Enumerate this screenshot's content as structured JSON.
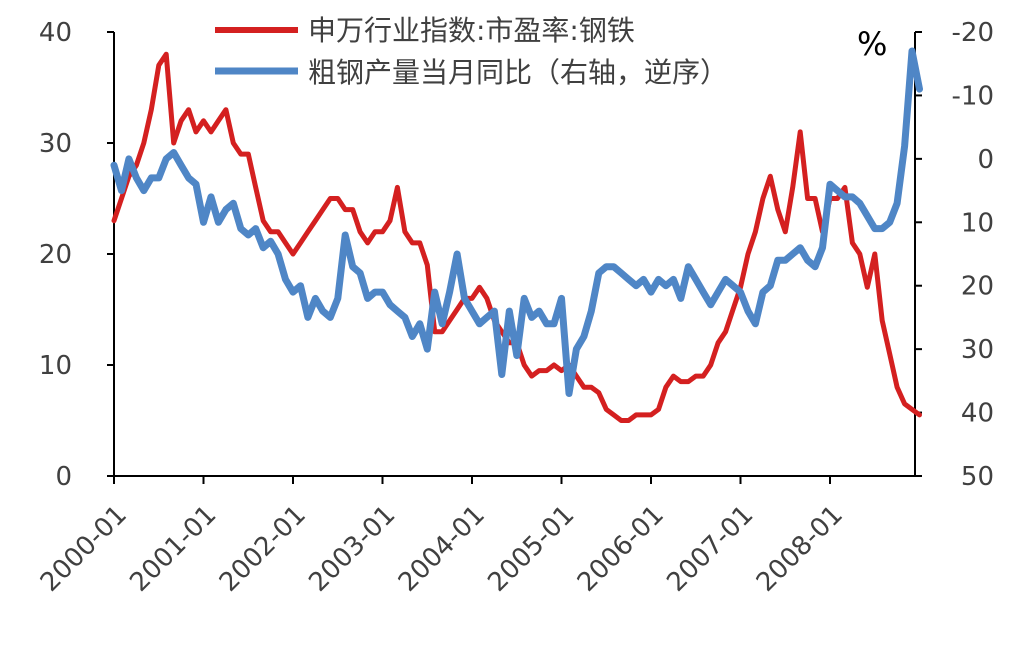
{
  "chart_data": {
    "type": "line",
    "unit_label": "%",
    "x_ticks": [
      "2000-01",
      "2001-01",
      "2002-01",
      "2003-01",
      "2004-01",
      "2005-01",
      "2006-01",
      "2007-01",
      "2008-01"
    ],
    "left_axis": {
      "ticks": [
        "0",
        "10",
        "20",
        "30",
        "40"
      ],
      "range": [
        0,
        40
      ]
    },
    "right_axis": {
      "ticks": [
        "-20",
        "-10",
        "0",
        "10",
        "20",
        "30",
        "40",
        "50"
      ],
      "range": [
        -20,
        50
      ],
      "reversed": true
    },
    "legend_position": "top-center",
    "series": [
      {
        "name": "申万行业指数:市盈率:钢铁",
        "axis": "left",
        "color": "#d42020",
        "points": [
          [
            "2000-01",
            23
          ],
          [
            "2000-02",
            25
          ],
          [
            "2000-03",
            27
          ],
          [
            "2000-04",
            28
          ],
          [
            "2000-05",
            30
          ],
          [
            "2000-06",
            33
          ],
          [
            "2000-07",
            37
          ],
          [
            "2000-08",
            38
          ],
          [
            "2000-09",
            30
          ],
          [
            "2000-10",
            32
          ],
          [
            "2000-11",
            33
          ],
          [
            "2000-12",
            31
          ],
          [
            "2001-01",
            32
          ],
          [
            "2001-02",
            31
          ],
          [
            "2001-03",
            32
          ],
          [
            "2001-04",
            33
          ],
          [
            "2001-05",
            30
          ],
          [
            "2001-06",
            29
          ],
          [
            "2001-07",
            29
          ],
          [
            "2001-08",
            26
          ],
          [
            "2001-09",
            23
          ],
          [
            "2001-10",
            22
          ],
          [
            "2001-11",
            22
          ],
          [
            "2001-12",
            21
          ],
          [
            "2002-01",
            20
          ],
          [
            "2002-02",
            21
          ],
          [
            "2002-03",
            22
          ],
          [
            "2002-04",
            23
          ],
          [
            "2002-05",
            24
          ],
          [
            "2002-06",
            25
          ],
          [
            "2002-07",
            25
          ],
          [
            "2002-08",
            24
          ],
          [
            "2002-09",
            24
          ],
          [
            "2002-10",
            22
          ],
          [
            "2002-11",
            21
          ],
          [
            "2002-12",
            22
          ],
          [
            "2003-01",
            22
          ],
          [
            "2003-02",
            23
          ],
          [
            "2003-03",
            26
          ],
          [
            "2003-04",
            22
          ],
          [
            "2003-05",
            21
          ],
          [
            "2003-06",
            21
          ],
          [
            "2003-07",
            19
          ],
          [
            "2003-08",
            13
          ],
          [
            "2003-09",
            13
          ],
          [
            "2003-10",
            14
          ],
          [
            "2003-11",
            15
          ],
          [
            "2003-12",
            16
          ],
          [
            "2004-01",
            16
          ],
          [
            "2004-02",
            17
          ],
          [
            "2004-03",
            16
          ],
          [
            "2004-04",
            14
          ],
          [
            "2004-05",
            13
          ],
          [
            "2004-06",
            12
          ],
          [
            "2004-07",
            12
          ],
          [
            "2004-08",
            10
          ],
          [
            "2004-09",
            9
          ],
          [
            "2004-10",
            9.5
          ],
          [
            "2004-11",
            9.5
          ],
          [
            "2004-12",
            10
          ],
          [
            "2005-01",
            9.5
          ],
          [
            "2005-02",
            10
          ],
          [
            "2005-03",
            9
          ],
          [
            "2005-04",
            8
          ],
          [
            "2005-05",
            8
          ],
          [
            "2005-06",
            7.5
          ],
          [
            "2005-07",
            6
          ],
          [
            "2005-08",
            5.5
          ],
          [
            "2005-09",
            5
          ],
          [
            "2005-10",
            5
          ],
          [
            "2005-11",
            5.5
          ],
          [
            "2005-12",
            5.5
          ],
          [
            "2006-01",
            5.5
          ],
          [
            "2006-02",
            6
          ],
          [
            "2006-03",
            8
          ],
          [
            "2006-04",
            9
          ],
          [
            "2006-05",
            8.5
          ],
          [
            "2006-06",
            8.5
          ],
          [
            "2006-07",
            9
          ],
          [
            "2006-08",
            9
          ],
          [
            "2006-09",
            10
          ],
          [
            "2006-10",
            12
          ],
          [
            "2006-11",
            13
          ],
          [
            "2006-12",
            15
          ],
          [
            "2007-01",
            17
          ],
          [
            "2007-02",
            20
          ],
          [
            "2007-03",
            22
          ],
          [
            "2007-04",
            25
          ],
          [
            "2007-05",
            27
          ],
          [
            "2007-06",
            24
          ],
          [
            "2007-07",
            22
          ],
          [
            "2007-08",
            26
          ],
          [
            "2007-09",
            31
          ],
          [
            "2007-10",
            25
          ],
          [
            "2007-11",
            25
          ],
          [
            "2007-12",
            22
          ],
          [
            "2008-01",
            25
          ],
          [
            "2008-02",
            25
          ],
          [
            "2008-03",
            26
          ],
          [
            "2008-04",
            21
          ],
          [
            "2008-05",
            20
          ],
          [
            "2008-06",
            17
          ],
          [
            "2008-07",
            20
          ],
          [
            "2008-08",
            14
          ],
          [
            "2008-09",
            11
          ],
          [
            "2008-10",
            8
          ],
          [
            "2008-11",
            6.5
          ],
          [
            "2008-12",
            6
          ],
          [
            "2009-01",
            5.5
          ]
        ]
      },
      {
        "name": "粗钢产量当月同比（右轴，逆序）",
        "axis": "right",
        "color": "#4f86c6",
        "points": [
          [
            "2000-01",
            1
          ],
          [
            "2000-02",
            5
          ],
          [
            "2000-03",
            0
          ],
          [
            "2000-04",
            3
          ],
          [
            "2000-05",
            5
          ],
          [
            "2000-06",
            3
          ],
          [
            "2000-07",
            3
          ],
          [
            "2000-08",
            0
          ],
          [
            "2000-09",
            -1
          ],
          [
            "2000-10",
            1
          ],
          [
            "2000-11",
            3
          ],
          [
            "2000-12",
            4
          ],
          [
            "2001-01",
            10
          ],
          [
            "2001-02",
            6
          ],
          [
            "2001-03",
            10
          ],
          [
            "2001-04",
            8
          ],
          [
            "2001-05",
            7
          ],
          [
            "2001-06",
            11
          ],
          [
            "2001-07",
            12
          ],
          [
            "2001-08",
            11
          ],
          [
            "2001-09",
            14
          ],
          [
            "2001-10",
            13
          ],
          [
            "2001-11",
            15
          ],
          [
            "2001-12",
            19
          ],
          [
            "2002-01",
            21
          ],
          [
            "2002-02",
            20
          ],
          [
            "2002-03",
            25
          ],
          [
            "2002-04",
            22
          ],
          [
            "2002-05",
            24
          ],
          [
            "2002-06",
            25
          ],
          [
            "2002-07",
            22
          ],
          [
            "2002-08",
            12
          ],
          [
            "2002-09",
            17
          ],
          [
            "2002-10",
            18
          ],
          [
            "2002-11",
            22
          ],
          [
            "2002-12",
            21
          ],
          [
            "2003-01",
            21
          ],
          [
            "2003-02",
            23
          ],
          [
            "2003-03",
            24
          ],
          [
            "2003-04",
            25
          ],
          [
            "2003-05",
            28
          ],
          [
            "2003-06",
            26
          ],
          [
            "2003-07",
            30
          ],
          [
            "2003-08",
            21
          ],
          [
            "2003-09",
            26
          ],
          [
            "2003-10",
            21
          ],
          [
            "2003-11",
            15
          ],
          [
            "2003-12",
            22
          ],
          [
            "2004-01",
            24
          ],
          [
            "2004-02",
            26
          ],
          [
            "2004-03",
            25
          ],
          [
            "2004-04",
            24
          ],
          [
            "2004-05",
            34
          ],
          [
            "2004-06",
            24
          ],
          [
            "2004-07",
            31
          ],
          [
            "2004-08",
            22
          ],
          [
            "2004-09",
            25
          ],
          [
            "2004-10",
            24
          ],
          [
            "2004-11",
            26
          ],
          [
            "2004-12",
            26
          ],
          [
            "2005-01",
            22
          ],
          [
            "2005-02",
            37
          ],
          [
            "2005-03",
            30
          ],
          [
            "2005-04",
            28
          ],
          [
            "2005-05",
            24
          ],
          [
            "2005-06",
            18
          ],
          [
            "2005-07",
            17
          ],
          [
            "2005-08",
            17
          ],
          [
            "2005-09",
            18
          ],
          [
            "2005-10",
            19
          ],
          [
            "2005-11",
            20
          ],
          [
            "2005-12",
            19
          ],
          [
            "2006-01",
            21
          ],
          [
            "2006-02",
            19
          ],
          [
            "2006-03",
            20
          ],
          [
            "2006-04",
            19
          ],
          [
            "2006-05",
            22
          ],
          [
            "2006-06",
            17
          ],
          [
            "2006-07",
            19
          ],
          [
            "2006-08",
            21
          ],
          [
            "2006-09",
            23
          ],
          [
            "2006-10",
            21
          ],
          [
            "2006-11",
            19
          ],
          [
            "2006-12",
            20
          ],
          [
            "2007-01",
            21
          ],
          [
            "2007-02",
            24
          ],
          [
            "2007-03",
            26
          ],
          [
            "2007-04",
            21
          ],
          [
            "2007-05",
            20
          ],
          [
            "2007-06",
            16
          ],
          [
            "2007-07",
            16
          ],
          [
            "2007-08",
            15
          ],
          [
            "2007-09",
            14
          ],
          [
            "2007-10",
            16
          ],
          [
            "2007-11",
            17
          ],
          [
            "2007-12",
            14
          ],
          [
            "2008-01",
            4
          ],
          [
            "2008-02",
            5
          ],
          [
            "2008-03",
            6
          ],
          [
            "2008-04",
            6
          ],
          [
            "2008-05",
            7
          ],
          [
            "2008-06",
            9
          ],
          [
            "2008-07",
            11
          ],
          [
            "2008-08",
            11
          ],
          [
            "2008-09",
            10
          ],
          [
            "2008-10",
            7
          ],
          [
            "2008-11",
            -2
          ],
          [
            "2008-12",
            -17
          ],
          [
            "2009-01",
            -11
          ]
        ]
      }
    ]
  }
}
